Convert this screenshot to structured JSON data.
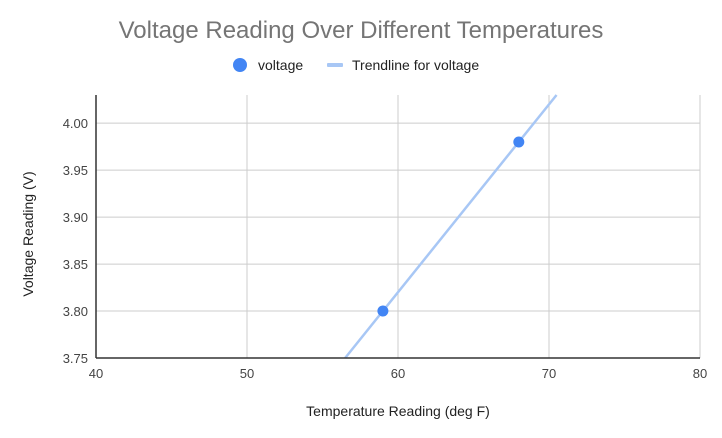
{
  "chart_data": {
    "type": "scatter",
    "title": "Voltage Reading Over Different Temperatures",
    "xlabel": "Temperature Reading (deg F)",
    "ylabel": "Voltage Reading (V)",
    "xlim": [
      40,
      80
    ],
    "ylim": [
      3.75,
      4.03
    ],
    "xticks": [
      "40",
      "50",
      "60",
      "70",
      "80"
    ],
    "yticks": [
      "3.75",
      "3.80",
      "3.85",
      "3.90",
      "3.95",
      "4.00"
    ],
    "xtick_values": [
      40,
      50,
      60,
      70,
      80
    ],
    "ytick_values": [
      3.75,
      3.8,
      3.85,
      3.9,
      3.95,
      4.0
    ],
    "grid": true,
    "legend_position": "top",
    "series": [
      {
        "name": "voltage",
        "type": "scatter",
        "color": "#4285f4",
        "points": [
          {
            "x": 59,
            "y": 3.8
          },
          {
            "x": 68,
            "y": 3.98
          }
        ]
      }
    ],
    "trendline": {
      "name": "Trendline for voltage",
      "color": "#a8c7f5",
      "type": "linear",
      "through": [
        {
          "x": 59,
          "y": 3.8
        },
        {
          "x": 68,
          "y": 3.98
        }
      ]
    },
    "legend": [
      {
        "label": "voltage",
        "marker": "circle",
        "color": "#4285f4"
      },
      {
        "label": "Trendline for voltage",
        "marker": "line",
        "color": "#a8c7f5"
      }
    ]
  }
}
